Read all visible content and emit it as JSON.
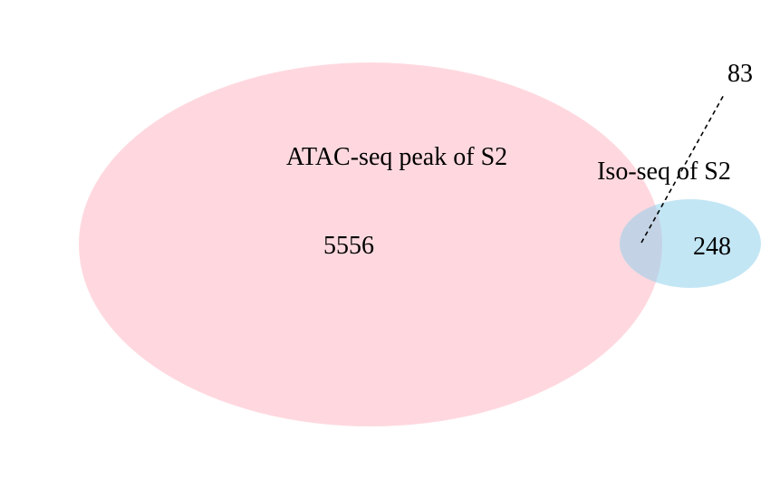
{
  "diagram": {
    "type": "venn",
    "sets": [
      {
        "label": "ATAC-seq peak of S2",
        "only_count": "5556",
        "color": "#ffc0cb"
      },
      {
        "label": "Iso-seq of S2",
        "only_count": "248",
        "color": "#87ceeb"
      }
    ],
    "intersection": {
      "count": "83"
    }
  }
}
